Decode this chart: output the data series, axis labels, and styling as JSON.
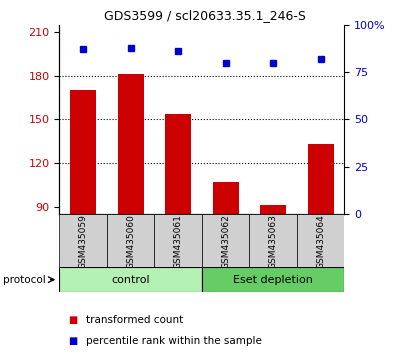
{
  "title": "GDS3599 / scl20633.35.1_246-S",
  "samples": [
    "GSM435059",
    "GSM435060",
    "GSM435061",
    "GSM435062",
    "GSM435063",
    "GSM435064"
  ],
  "bar_values": [
    170,
    181,
    154,
    107,
    91,
    133
  ],
  "dot_values_pct": [
    87,
    88,
    86,
    80,
    80,
    82
  ],
  "bar_color": "#cc0000",
  "dot_color": "#0000cc",
  "ylim_left": [
    85,
    215
  ],
  "ylim_right": [
    0,
    100
  ],
  "yticks_left": [
    90,
    120,
    150,
    180,
    210
  ],
  "yticks_right": [
    0,
    25,
    50,
    75,
    100
  ],
  "ytick_labels_right": [
    "0",
    "25",
    "50",
    "75",
    "100%"
  ],
  "hlines": [
    120,
    150,
    180
  ],
  "groups": [
    {
      "label": "control",
      "indices": [
        0,
        1,
        2
      ],
      "color": "#b3f0b3"
    },
    {
      "label": "Eset depletion",
      "indices": [
        3,
        4,
        5
      ],
      "color": "#66cc66"
    }
  ],
  "protocol_label": "protocol",
  "legend_bar_label": "transformed count",
  "legend_dot_label": "percentile rank within the sample",
  "bar_width": 0.55,
  "sample_bg_color": "#d0d0d0",
  "title_fontsize": 9,
  "tick_fontsize": 8,
  "sample_fontsize": 6.5,
  "group_fontsize": 8,
  "legend_fontsize": 7.5
}
